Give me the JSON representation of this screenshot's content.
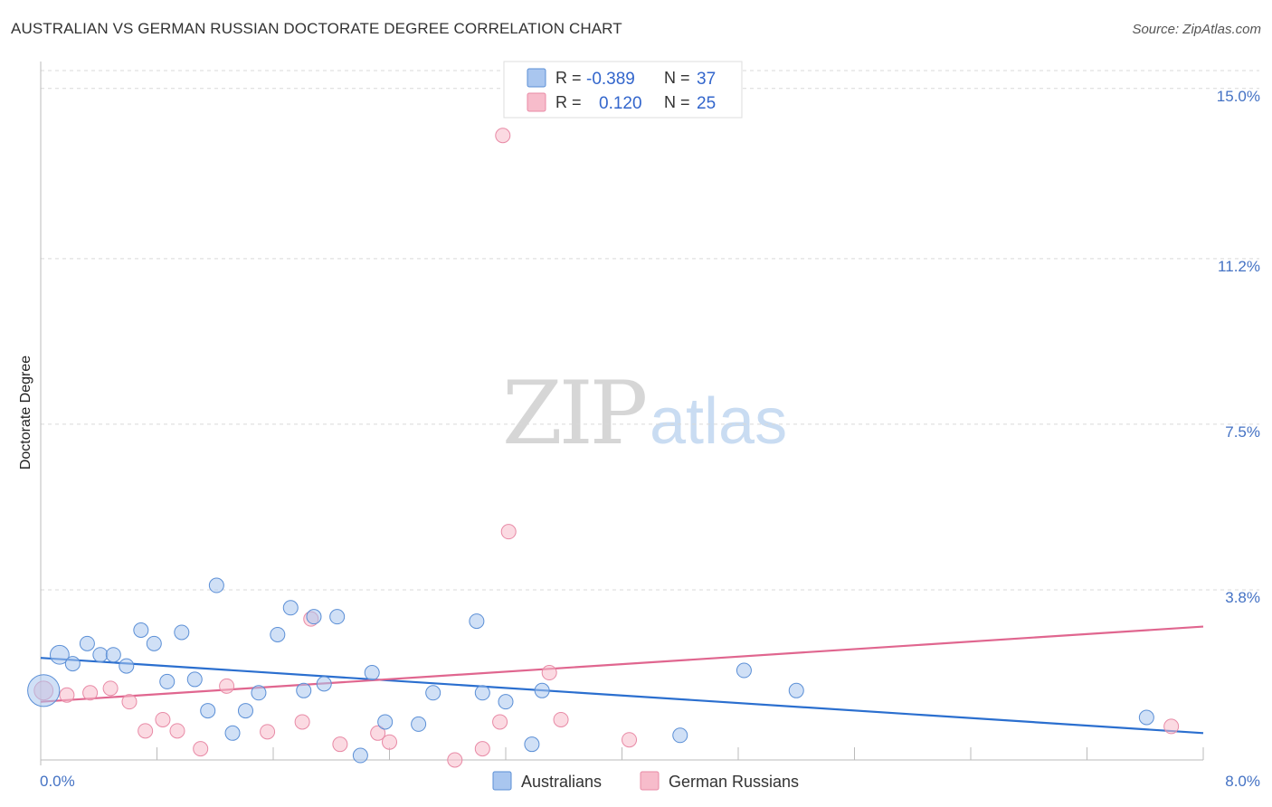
{
  "header": {
    "title": "AUSTRALIAN VS GERMAN RUSSIAN DOCTORATE DEGREE CORRELATION CHART",
    "source": "Source: ZipAtlas.com"
  },
  "watermark": {
    "zip": "ZIP",
    "atlas": "atlas"
  },
  "colors": {
    "blue_fill": "#a9c6ef",
    "blue_stroke": "#5b8fd6",
    "blue_line": "#2b6fcf",
    "pink_fill": "#f7bccb",
    "pink_stroke": "#e88aa6",
    "pink_line": "#e0668f",
    "grid": "#d9d9d9",
    "tick_text": "#4472c4"
  },
  "legend": {
    "rows": [
      {
        "r_label": "R =",
        "r_value": "-0.389",
        "n_label": "N =",
        "n_value": "37",
        "series": "Australians"
      },
      {
        "r_label": "R =",
        "r_value": "0.120",
        "n_label": "N =",
        "n_value": "25",
        "series": "German Russians"
      }
    ]
  },
  "chart_data": {
    "type": "scatter",
    "title": "AUSTRALIAN VS GERMAN RUSSIAN DOCTORATE DEGREE CORRELATION CHART",
    "xlabel": "",
    "ylabel": "Doctorate Degree",
    "xlim": [
      0,
      8
    ],
    "ylim": [
      0,
      15.4
    ],
    "x_tick_labels": [
      "0.0%",
      "8.0%"
    ],
    "y_ticks": [
      3.8,
      7.5,
      11.2,
      15.0
    ],
    "y_tick_labels": [
      "3.8%",
      "7.5%",
      "11.2%",
      "15.0%"
    ],
    "grid": true,
    "legend_position": "top-center",
    "series": [
      {
        "name": "Australians",
        "color": "#a9c6ef",
        "trend": {
          "x": [
            0,
            8
          ],
          "y": [
            2.28,
            0.6
          ]
        },
        "points": [
          {
            "x": 0.02,
            "y": 1.55,
            "s": 2.2
          },
          {
            "x": 0.13,
            "y": 2.35,
            "s": 1.3
          },
          {
            "x": 0.22,
            "y": 2.15,
            "s": 1
          },
          {
            "x": 0.32,
            "y": 2.6,
            "s": 1
          },
          {
            "x": 0.41,
            "y": 2.35,
            "s": 1
          },
          {
            "x": 0.5,
            "y": 2.35,
            "s": 1
          },
          {
            "x": 0.59,
            "y": 2.1,
            "s": 1
          },
          {
            "x": 0.69,
            "y": 2.9,
            "s": 1
          },
          {
            "x": 0.78,
            "y": 2.6,
            "s": 1
          },
          {
            "x": 0.87,
            "y": 1.75,
            "s": 1
          },
          {
            "x": 0.97,
            "y": 2.85,
            "s": 1
          },
          {
            "x": 1.06,
            "y": 1.8,
            "s": 1
          },
          {
            "x": 1.15,
            "y": 1.1,
            "s": 1
          },
          {
            "x": 1.21,
            "y": 3.9,
            "s": 1
          },
          {
            "x": 1.32,
            "y": 0.6,
            "s": 1
          },
          {
            "x": 1.41,
            "y": 1.1,
            "s": 1
          },
          {
            "x": 1.5,
            "y": 1.5,
            "s": 1
          },
          {
            "x": 1.63,
            "y": 2.8,
            "s": 1
          },
          {
            "x": 1.72,
            "y": 3.4,
            "s": 1
          },
          {
            "x": 1.81,
            "y": 1.55,
            "s": 1
          },
          {
            "x": 1.88,
            "y": 3.2,
            "s": 1
          },
          {
            "x": 1.95,
            "y": 1.7,
            "s": 1
          },
          {
            "x": 2.04,
            "y": 3.2,
            "s": 1
          },
          {
            "x": 2.28,
            "y": 1.95,
            "s": 1
          },
          {
            "x": 2.2,
            "y": 0.1,
            "s": 1
          },
          {
            "x": 2.37,
            "y": 0.85,
            "s": 1
          },
          {
            "x": 2.6,
            "y": 0.8,
            "s": 1
          },
          {
            "x": 2.7,
            "y": 1.5,
            "s": 1
          },
          {
            "x": 3.0,
            "y": 3.1,
            "s": 1
          },
          {
            "x": 3.04,
            "y": 1.5,
            "s": 1
          },
          {
            "x": 3.2,
            "y": 1.3,
            "s": 1
          },
          {
            "x": 3.38,
            "y": 0.35,
            "s": 1
          },
          {
            "x": 3.45,
            "y": 1.55,
            "s": 1
          },
          {
            "x": 4.4,
            "y": 0.55,
            "s": 1
          },
          {
            "x": 4.84,
            "y": 2.0,
            "s": 1
          },
          {
            "x": 5.2,
            "y": 1.55,
            "s": 1
          },
          {
            "x": 7.61,
            "y": 0.95,
            "s": 1
          }
        ]
      },
      {
        "name": "German Russians",
        "color": "#f7bccb",
        "trend": {
          "x": [
            0,
            8
          ],
          "y": [
            1.3,
            2.98
          ]
        },
        "points": [
          {
            "x": 0.02,
            "y": 1.55,
            "s": 1.3
          },
          {
            "x": 0.18,
            "y": 1.45,
            "s": 1
          },
          {
            "x": 0.34,
            "y": 1.5,
            "s": 1
          },
          {
            "x": 0.48,
            "y": 1.6,
            "s": 1
          },
          {
            "x": 0.61,
            "y": 1.3,
            "s": 1
          },
          {
            "x": 0.72,
            "y": 0.65,
            "s": 1
          },
          {
            "x": 0.84,
            "y": 0.9,
            "s": 1
          },
          {
            "x": 0.94,
            "y": 0.65,
            "s": 1
          },
          {
            "x": 1.1,
            "y": 0.25,
            "s": 1
          },
          {
            "x": 1.28,
            "y": 1.65,
            "s": 1
          },
          {
            "x": 1.56,
            "y": 0.63,
            "s": 1
          },
          {
            "x": 1.8,
            "y": 0.85,
            "s": 1
          },
          {
            "x": 1.86,
            "y": 3.15,
            "s": 1
          },
          {
            "x": 2.06,
            "y": 0.35,
            "s": 1
          },
          {
            "x": 2.32,
            "y": 0.6,
            "s": 1
          },
          {
            "x": 2.4,
            "y": 0.4,
            "s": 1
          },
          {
            "x": 2.85,
            "y": 0.0,
            "s": 1
          },
          {
            "x": 3.04,
            "y": 0.25,
            "s": 1
          },
          {
            "x": 3.16,
            "y": 0.85,
            "s": 1
          },
          {
            "x": 3.18,
            "y": 13.95,
            "s": 1
          },
          {
            "x": 3.22,
            "y": 5.1,
            "s": 1
          },
          {
            "x": 3.5,
            "y": 1.95,
            "s": 1
          },
          {
            "x": 3.58,
            "y": 0.9,
            "s": 1
          },
          {
            "x": 4.05,
            "y": 0.45,
            "s": 1
          },
          {
            "x": 7.78,
            "y": 0.75,
            "s": 1
          }
        ]
      }
    ]
  }
}
